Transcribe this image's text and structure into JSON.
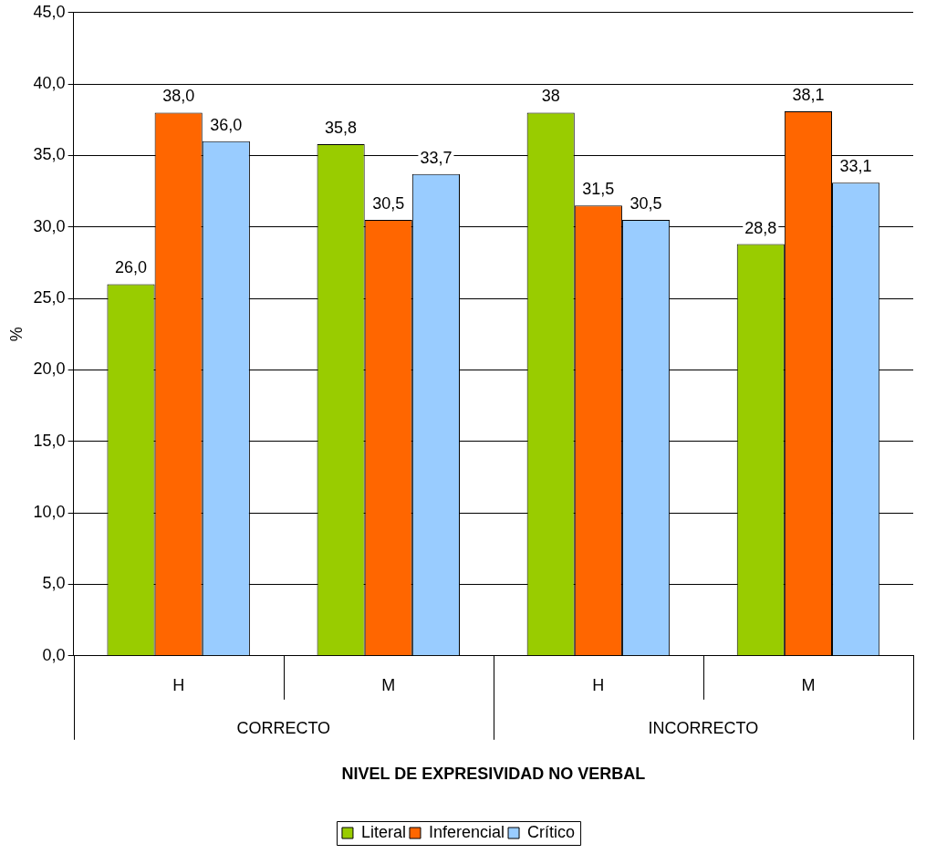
{
  "chart_data": {
    "type": "bar",
    "xlabel": "NIVEL DE EXPRESIVIDAD NO VERBAL",
    "ylabel": "%",
    "categories": [
      "H",
      "M",
      "H",
      "M"
    ],
    "annotations": [
      "CORRECTO",
      "INCORRECTO"
    ],
    "series": [
      {
        "name": "Literal",
        "color": "#99cc00",
        "values": [
          26.0,
          35.8,
          38,
          28.8
        ],
        "value_labels": [
          "26,0",
          "35,8",
          "38",
          "28,8"
        ]
      },
      {
        "name": "Inferencial",
        "color": "#ff6600",
        "values": [
          38.0,
          30.5,
          31.5,
          38.1
        ],
        "value_labels": [
          "38,0",
          "30,5",
          "31,5",
          "38,1"
        ]
      },
      {
        "name": "Crítico",
        "color": "#99ccff",
        "values": [
          36.0,
          33.7,
          30.5,
          33.1
        ],
        "value_labels": [
          "36,0",
          "33,7",
          "30,5",
          "33,1"
        ]
      }
    ],
    "ylim": [
      0,
      45
    ],
    "yticks": [
      {
        "value": 0,
        "label": "0,0"
      },
      {
        "value": 5,
        "label": "5,0"
      },
      {
        "value": 10,
        "label": "10,0"
      },
      {
        "value": 15,
        "label": "15,0"
      },
      {
        "value": 20,
        "label": "20,0"
      },
      {
        "value": 25,
        "label": "25,0"
      },
      {
        "value": 30,
        "label": "30,0"
      },
      {
        "value": 35,
        "label": "35,0"
      },
      {
        "value": 40,
        "label": "40,0"
      },
      {
        "value": 45,
        "label": "45,0"
      }
    ],
    "grid": "y",
    "legend": "bottom"
  }
}
